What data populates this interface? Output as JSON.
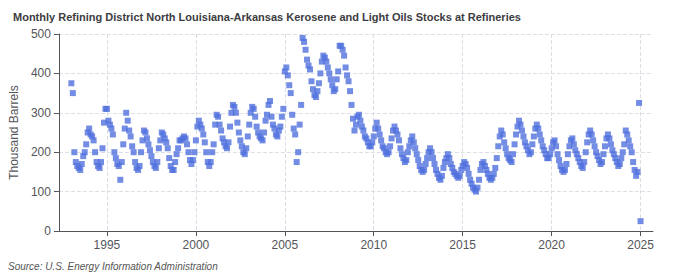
{
  "chart_data": {
    "type": "scatter",
    "title": "Monthly Refining District North Louisiana-Arkansas Kerosene and Light Oils Stocks at Refineries",
    "ylabel": "Thousand Barrels",
    "annotations": [
      "Source: U.S. Energy Information Administration"
    ],
    "marker": "square",
    "grid": true,
    "xlim": [
      1992.3,
      2025.7
    ],
    "xticks": [
      1995,
      2000,
      2005,
      2010,
      2015,
      2020,
      2025
    ],
    "ylim": [
      0,
      500
    ],
    "yticks": [
      0,
      100,
      200,
      300,
      400,
      500
    ],
    "x": [
      1993.0,
      1993.083,
      1993.167,
      1993.25,
      1993.333,
      1993.417,
      1993.5,
      1993.583,
      1993.667,
      1993.75,
      1993.833,
      1993.917,
      1994.0,
      1994.083,
      1994.167,
      1994.25,
      1994.333,
      1994.417,
      1994.5,
      1994.583,
      1994.667,
      1994.75,
      1994.833,
      1994.917,
      1995.0,
      1995.083,
      1995.167,
      1995.25,
      1995.333,
      1995.417,
      1995.5,
      1995.583,
      1995.667,
      1995.75,
      1995.833,
      1995.917,
      1996.0,
      1996.083,
      1996.167,
      1996.25,
      1996.333,
      1996.417,
      1996.5,
      1996.583,
      1996.667,
      1996.75,
      1996.833,
      1996.917,
      1997.0,
      1997.083,
      1997.167,
      1997.25,
      1997.333,
      1997.417,
      1997.5,
      1997.583,
      1997.667,
      1997.75,
      1997.833,
      1997.917,
      1998.0,
      1998.083,
      1998.167,
      1998.25,
      1998.333,
      1998.417,
      1998.5,
      1998.583,
      1998.667,
      1998.75,
      1998.833,
      1998.917,
      1999.0,
      1999.083,
      1999.167,
      1999.25,
      1999.333,
      1999.417,
      1999.5,
      1999.583,
      1999.667,
      1999.75,
      1999.833,
      1999.917,
      2000.0,
      2000.083,
      2000.167,
      2000.25,
      2000.333,
      2000.417,
      2000.5,
      2000.583,
      2000.667,
      2000.75,
      2000.833,
      2000.917,
      2001.0,
      2001.083,
      2001.167,
      2001.25,
      2001.333,
      2001.417,
      2001.5,
      2001.583,
      2001.667,
      2001.75,
      2001.833,
      2001.917,
      2002.0,
      2002.083,
      2002.167,
      2002.25,
      2002.333,
      2002.417,
      2002.5,
      2002.583,
      2002.667,
      2002.75,
      2002.833,
      2002.917,
      2003.0,
      2003.083,
      2003.167,
      2003.25,
      2003.333,
      2003.417,
      2003.5,
      2003.583,
      2003.667,
      2003.75,
      2003.833,
      2003.917,
      2004.0,
      2004.083,
      2004.167,
      2004.25,
      2004.333,
      2004.417,
      2004.5,
      2004.583,
      2004.667,
      2004.75,
      2004.833,
      2004.917,
      2005.0,
      2005.083,
      2005.167,
      2005.25,
      2005.333,
      2005.417,
      2005.5,
      2005.583,
      2005.667,
      2005.75,
      2005.833,
      2005.917,
      2006.0,
      2006.083,
      2006.167,
      2006.25,
      2006.333,
      2006.417,
      2006.5,
      2006.583,
      2006.667,
      2006.75,
      2006.833,
      2006.917,
      2007.0,
      2007.083,
      2007.167,
      2007.25,
      2007.333,
      2007.417,
      2007.5,
      2007.583,
      2007.667,
      2007.75,
      2007.833,
      2007.917,
      2008.0,
      2008.083,
      2008.167,
      2008.25,
      2008.333,
      2008.417,
      2008.5,
      2008.583,
      2008.667,
      2008.75,
      2008.833,
      2008.917,
      2009.0,
      2009.083,
      2009.167,
      2009.25,
      2009.333,
      2009.417,
      2009.5,
      2009.583,
      2009.667,
      2009.75,
      2009.833,
      2009.917,
      2010.0,
      2010.083,
      2010.167,
      2010.25,
      2010.333,
      2010.417,
      2010.5,
      2010.583,
      2010.667,
      2010.75,
      2010.833,
      2010.917,
      2011.0,
      2011.083,
      2011.167,
      2011.25,
      2011.333,
      2011.417,
      2011.5,
      2011.583,
      2011.667,
      2011.75,
      2011.833,
      2011.917,
      2012.0,
      2012.083,
      2012.167,
      2012.25,
      2012.333,
      2012.417,
      2012.5,
      2012.583,
      2012.667,
      2012.75,
      2012.833,
      2012.917,
      2013.0,
      2013.083,
      2013.167,
      2013.25,
      2013.333,
      2013.417,
      2013.5,
      2013.583,
      2013.667,
      2013.75,
      2013.833,
      2013.917,
      2014.0,
      2014.083,
      2014.167,
      2014.25,
      2014.333,
      2014.417,
      2014.5,
      2014.583,
      2014.667,
      2014.75,
      2014.833,
      2014.917,
      2015.0,
      2015.083,
      2015.167,
      2015.25,
      2015.333,
      2015.417,
      2015.5,
      2015.583,
      2015.667,
      2015.75,
      2015.833,
      2015.917,
      2016.0,
      2016.083,
      2016.167,
      2016.25,
      2016.333,
      2016.417,
      2016.5,
      2016.583,
      2016.667,
      2016.75,
      2016.833,
      2016.917,
      2017.0,
      2017.083,
      2017.167,
      2017.25,
      2017.333,
      2017.417,
      2017.5,
      2017.583,
      2017.667,
      2017.75,
      2017.833,
      2017.917,
      2018.0,
      2018.083,
      2018.167,
      2018.25,
      2018.333,
      2018.417,
      2018.5,
      2018.583,
      2018.667,
      2018.75,
      2018.833,
      2018.917,
      2019.0,
      2019.083,
      2019.167,
      2019.25,
      2019.333,
      2019.417,
      2019.5,
      2019.583,
      2019.667,
      2019.75,
      2019.833,
      2019.917,
      2020.0,
      2020.083,
      2020.167,
      2020.25,
      2020.333,
      2020.417,
      2020.5,
      2020.583,
      2020.667,
      2020.75,
      2020.833,
      2020.917,
      2021.0,
      2021.083,
      2021.167,
      2021.25,
      2021.333,
      2021.417,
      2021.5,
      2021.583,
      2021.667,
      2021.75,
      2021.833,
      2021.917,
      2022.0,
      2022.083,
      2022.167,
      2022.25,
      2022.333,
      2022.417,
      2022.5,
      2022.583,
      2022.667,
      2022.75,
      2022.833,
      2022.917,
      2023.0,
      2023.083,
      2023.167,
      2023.25,
      2023.333,
      2023.417,
      2023.5,
      2023.583,
      2023.667,
      2023.75,
      2023.833,
      2023.917,
      2024.0,
      2024.083,
      2024.167,
      2024.25,
      2024.333,
      2024.417,
      2024.5,
      2024.583,
      2024.667,
      2024.75,
      2024.833,
      2024.917,
      2025.0
    ],
    "values": [
      375,
      350,
      200,
      175,
      165,
      160,
      155,
      170,
      190,
      200,
      220,
      250,
      260,
      245,
      240,
      230,
      200,
      175,
      165,
      160,
      175,
      210,
      275,
      310,
      310,
      280,
      270,
      260,
      245,
      200,
      185,
      170,
      165,
      130,
      175,
      220,
      260,
      300,
      280,
      255,
      240,
      215,
      200,
      175,
      160,
      155,
      165,
      200,
      230,
      255,
      250,
      235,
      220,
      205,
      190,
      175,
      165,
      160,
      175,
      210,
      230,
      250,
      245,
      235,
      225,
      210,
      185,
      165,
      155,
      155,
      175,
      195,
      210,
      230,
      230,
      235,
      240,
      235,
      220,
      200,
      180,
      170,
      180,
      200,
      230,
      265,
      280,
      270,
      260,
      245,
      225,
      200,
      175,
      165,
      175,
      200,
      220,
      270,
      295,
      290,
      270,
      255,
      235,
      225,
      215,
      210,
      225,
      265,
      300,
      320,
      315,
      300,
      275,
      250,
      230,
      215,
      200,
      195,
      210,
      240,
      270,
      300,
      315,
      310,
      290,
      265,
      250,
      240,
      235,
      230,
      250,
      280,
      295,
      320,
      330,
      290,
      270,
      260,
      245,
      240,
      255,
      265,
      290,
      310,
      405,
      415,
      395,
      370,
      350,
      295,
      260,
      245,
      175,
      200,
      270,
      320,
      490,
      480,
      460,
      435,
      420,
      410,
      380,
      360,
      345,
      340,
      355,
      375,
      400,
      430,
      445,
      440,
      430,
      415,
      400,
      385,
      370,
      355,
      360,
      385,
      405,
      470,
      470,
      460,
      445,
      415,
      395,
      380,
      355,
      320,
      285,
      255,
      270,
      290,
      295,
      280,
      265,
      255,
      240,
      235,
      225,
      215,
      215,
      225,
      240,
      260,
      275,
      260,
      245,
      230,
      215,
      210,
      200,
      195,
      200,
      215,
      235,
      255,
      265,
      255,
      245,
      230,
      210,
      195,
      185,
      175,
      180,
      200,
      215,
      230,
      240,
      225,
      210,
      195,
      180,
      165,
      155,
      150,
      155,
      170,
      185,
      200,
      210,
      200,
      185,
      170,
      155,
      145,
      135,
      130,
      140,
      160,
      175,
      185,
      195,
      185,
      170,
      160,
      150,
      145,
      140,
      135,
      140,
      155,
      165,
      175,
      170,
      160,
      145,
      130,
      120,
      110,
      105,
      100,
      110,
      130,
      155,
      170,
      175,
      165,
      155,
      145,
      135,
      130,
      135,
      145,
      160,
      185,
      215,
      240,
      255,
      245,
      225,
      210,
      195,
      185,
      180,
      175,
      195,
      220,
      245,
      265,
      280,
      270,
      255,
      240,
      225,
      215,
      205,
      195,
      200,
      220,
      240,
      260,
      270,
      260,
      245,
      230,
      215,
      205,
      195,
      185,
      185,
      195,
      210,
      225,
      230,
      215,
      195,
      180,
      165,
      155,
      150,
      155,
      170,
      195,
      215,
      230,
      235,
      220,
      205,
      195,
      185,
      175,
      165,
      160,
      175,
      200,
      225,
      245,
      255,
      245,
      230,
      215,
      200,
      190,
      180,
      170,
      175,
      195,
      215,
      235,
      245,
      235,
      220,
      205,
      195,
      185,
      175,
      165,
      170,
      185,
      200,
      220,
      255,
      245,
      230,
      215,
      200,
      175,
      155,
      140,
      150,
      325,
      25
    ]
  }
}
